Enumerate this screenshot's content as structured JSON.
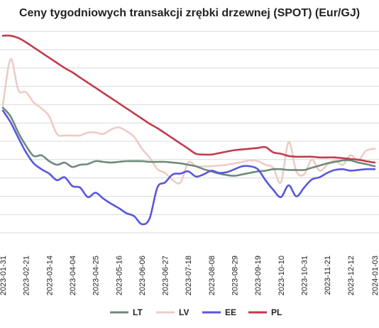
{
  "chart_data": {
    "type": "line",
    "title": "Ceny tygodniowych transakcji zrębki drzewnej (SPOT) (Eur/GJ)",
    "xlabel": "",
    "ylabel": "",
    "grid": true,
    "legend_position": "bottom",
    "x_ticks": [
      "2023-01-31",
      "2023-02-21",
      "2023-03-14",
      "2023-04-04",
      "2023-04-25",
      "2023-05-16",
      "2023-06-06",
      "2023-06-27",
      "2023-07-18",
      "2023-08-08",
      "2023-08-29",
      "2023-09-19",
      "2023-10-10",
      "2023-10-31",
      "2023-11-21",
      "2023-12-12",
      "2024-01-03"
    ],
    "x": [
      "2023-01-31",
      "2023-02-07",
      "2023-02-14",
      "2023-02-21",
      "2023-02-28",
      "2023-03-07",
      "2023-03-14",
      "2023-03-21",
      "2023-03-28",
      "2023-04-04",
      "2023-04-11",
      "2023-04-18",
      "2023-04-25",
      "2023-05-02",
      "2023-05-09",
      "2023-05-16",
      "2023-05-23",
      "2023-05-30",
      "2023-06-06",
      "2023-06-13",
      "2023-06-20",
      "2023-06-27",
      "2023-07-04",
      "2023-07-11",
      "2023-07-18",
      "2023-07-25",
      "2023-08-01",
      "2023-08-08",
      "2023-08-15",
      "2023-08-22",
      "2023-08-29",
      "2023-09-05",
      "2023-09-12",
      "2023-09-19",
      "2023-09-26",
      "2023-10-03",
      "2023-10-10",
      "2023-10-17",
      "2023-10-24",
      "2023-10-31",
      "2023-11-07",
      "2023-11-14",
      "2023-11-21",
      "2023-11-28",
      "2023-12-05",
      "2023-12-12",
      "2023-12-19",
      "2023-12-26",
      "2024-01-03"
    ],
    "series": [
      {
        "name": "LT",
        "color": "#6f8a78",
        "values": [
          25.4,
          24.2,
          22.0,
          20.2,
          18.8,
          18.9,
          18.1,
          17.6,
          17.9,
          17.3,
          17.6,
          17.7,
          18.1,
          18.0,
          17.9,
          18.0,
          18.1,
          18.1,
          18.1,
          18.0,
          18.0,
          18.0,
          17.9,
          17.8,
          17.6,
          17.4,
          17.0,
          16.7,
          16.4,
          16.2,
          16.1,
          16.3,
          16.5,
          16.7,
          16.8,
          17.0,
          17.0,
          16.9,
          16.9,
          16.9,
          17.2,
          17.5,
          17.8,
          18.0,
          18.2,
          18.2,
          17.9,
          17.7,
          17.4
        ]
      },
      {
        "name": "LV",
        "color": "#ecccc4",
        "values": [
          25.7,
          32.0,
          27.8,
          27.5,
          26.1,
          25.3,
          24.2,
          21.8,
          21.6,
          21.6,
          21.6,
          22.0,
          22.0,
          21.8,
          22.4,
          22.7,
          22.2,
          21.4,
          19.8,
          18.6,
          17.0,
          16.5,
          15.5,
          15.2,
          17.9,
          17.4,
          17.4,
          17.4,
          17.5,
          17.6,
          17.8,
          18.0,
          18.2,
          18.1,
          17.6,
          17.2,
          15.2,
          20.7,
          16.7,
          16.3,
          18.3,
          16.8,
          17.6,
          18.2,
          17.6,
          18.9,
          18.2,
          19.5,
          19.8
        ]
      },
      {
        "name": "EE",
        "color": "#5757e0",
        "values": [
          25.0,
          23.4,
          21.3,
          19.3,
          17.8,
          17.0,
          16.4,
          15.5,
          15.9,
          14.7,
          14.5,
          13.2,
          13.8,
          13.0,
          12.3,
          11.7,
          11.0,
          10.6,
          9.5,
          10.3,
          14.5,
          15.2,
          16.3,
          16.4,
          16.7,
          16.0,
          16.3,
          16.8,
          16.5,
          16.6,
          17.0,
          17.4,
          17.4,
          17.0,
          15.5,
          14.2,
          13.2,
          14.8,
          13.3,
          14.5,
          15.6,
          15.9,
          16.5,
          16.9,
          17.0,
          16.8,
          16.9,
          17.0,
          17.0
        ]
      },
      {
        "name": "PL",
        "color": "#c23b4b",
        "values": [
          35.2,
          35.2,
          34.9,
          34.3,
          33.6,
          32.9,
          32.2,
          31.5,
          30.8,
          30.2,
          29.5,
          28.8,
          28.1,
          27.4,
          26.7,
          26.0,
          25.3,
          24.6,
          23.9,
          23.2,
          22.6,
          21.9,
          21.2,
          20.5,
          19.8,
          19.1,
          19.0,
          19.0,
          19.2,
          19.4,
          19.6,
          19.7,
          19.8,
          19.9,
          20.0,
          19.3,
          19.1,
          18.8,
          18.7,
          18.7,
          18.7,
          18.6,
          18.6,
          18.6,
          18.5,
          18.4,
          18.3,
          18.1,
          17.9
        ]
      }
    ]
  }
}
